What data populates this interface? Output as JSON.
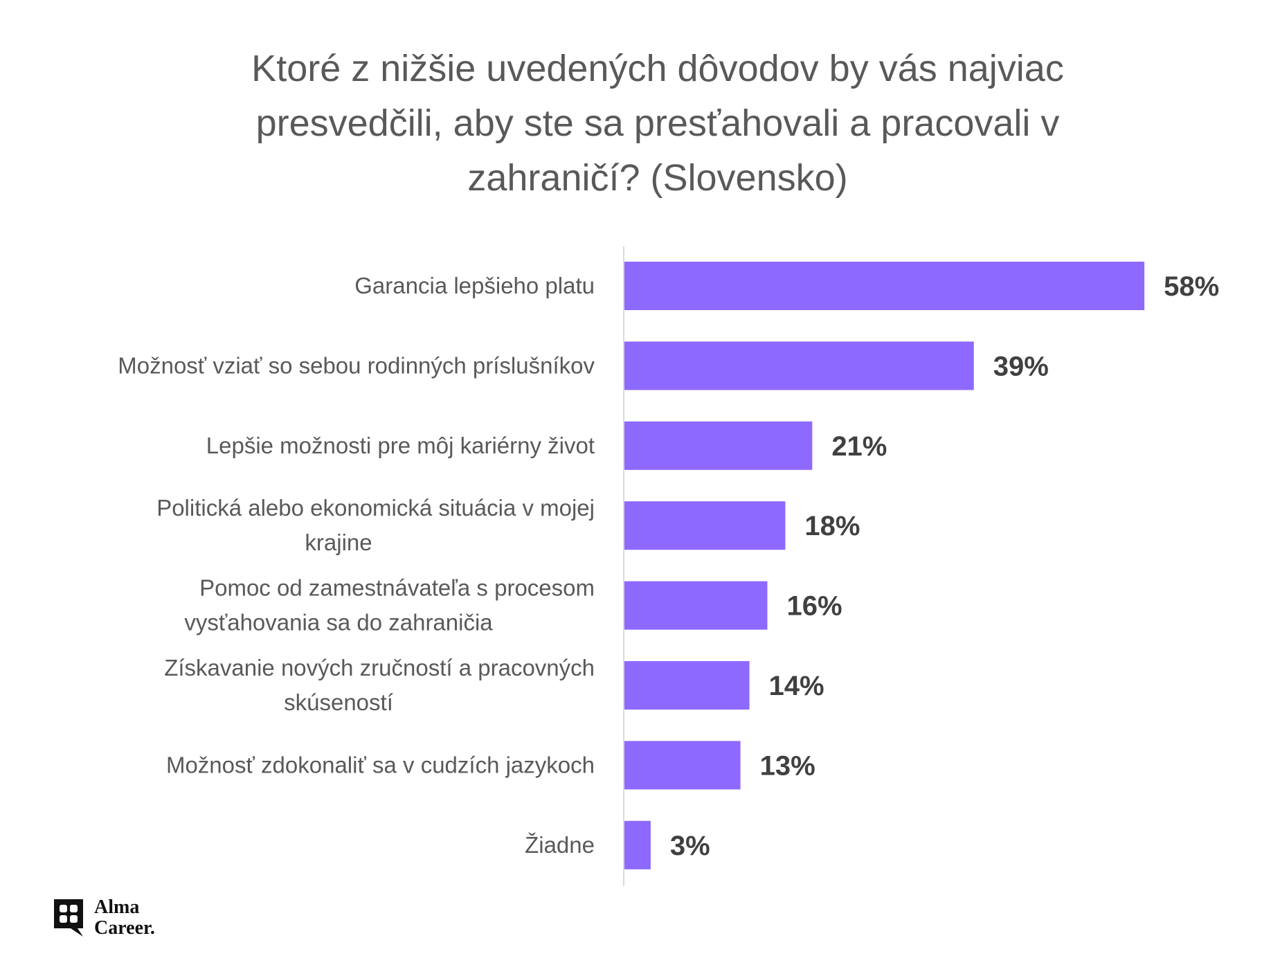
{
  "chart_data": {
    "type": "bar",
    "orientation": "horizontal",
    "title": "Ktoré z nižšie uvedených dôvodov by vás najviac\npresvedčili, aby ste sa presťahovali a pracovali v\nzahraničí? (Slovensko)",
    "categories": [
      "Garancia lepšieho platu",
      "Možnosť vziať so sebou rodinných príslušníkov",
      "Lepšie možnosti pre môj kariérny život",
      "Politická alebo ekonomická situácia v mojej\nkrajine",
      "Pomoc od zamestnávateľa s procesom\nvysťahovania sa do zahraničia",
      "Získavanie nových zručností a pracovných\nskúseností",
      "Možnosť zdokonaliť sa v cudzích jazykoch",
      "Žiadne"
    ],
    "values": [
      58,
      39,
      21,
      18,
      16,
      14,
      13,
      3
    ],
    "value_labels": [
      "58%",
      "39%",
      "21%",
      "18%",
      "16%",
      "14%",
      "13%",
      "3%"
    ],
    "xlim": [
      0,
      62
    ],
    "grid": false,
    "legend": "none",
    "bar_color": "#8e69ff",
    "axis_color": "#d9d9d9"
  },
  "branding": {
    "logo_text": "Alma\nCareer."
  }
}
